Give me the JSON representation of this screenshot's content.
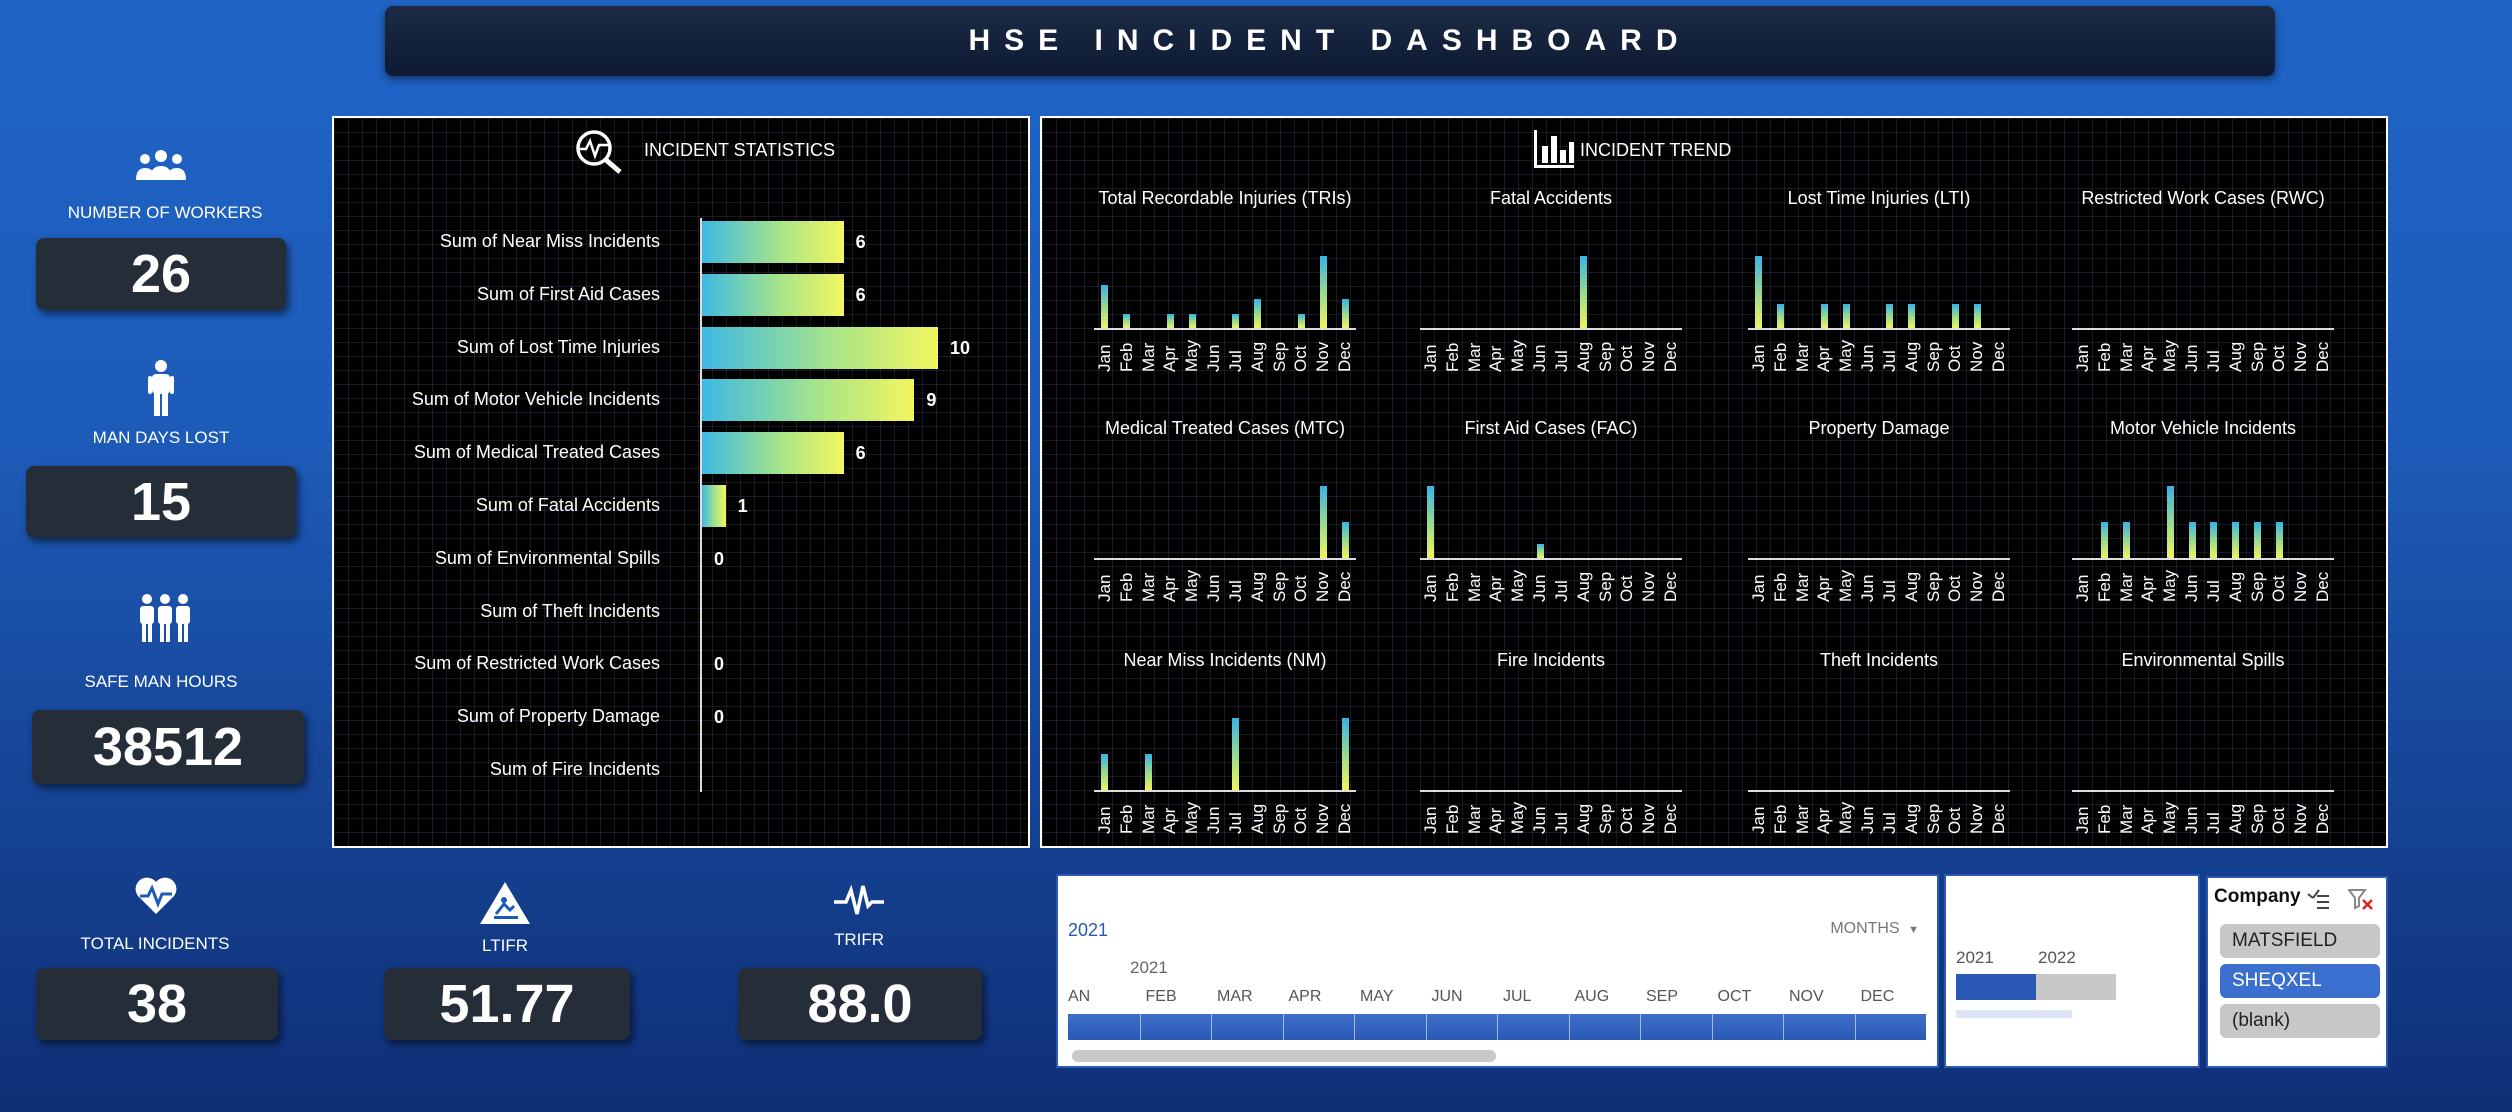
{
  "title": "HSE INCIDENT DASHBOARD",
  "kpis": {
    "workers": {
      "label": "NUMBER OF WORKERS",
      "value": "26",
      "icon": "group-icon"
    },
    "man_days_lost": {
      "label": "MAN DAYS LOST",
      "value": "15",
      "icon": "person-icon"
    },
    "safe_man_hours": {
      "label": "SAFE MAN HOURS",
      "value": "38512",
      "icon": "people-icon"
    },
    "total_incidents": {
      "label": "TOTAL INCIDENTS",
      "value": "38",
      "icon": "heartbeat-icon"
    },
    "ltifr": {
      "label": "LTIFR",
      "value": "51.77",
      "icon": "warning-fall-icon"
    },
    "trifr": {
      "label": "TRIFR",
      "value": "88.0",
      "icon": "pulse-icon"
    }
  },
  "incident_statistics": {
    "title": "INCIDENT STATISTICS",
    "icon": "magnifier-pulse-icon"
  },
  "incident_trend": {
    "title": "INCIDENT TREND",
    "icon": "bar-chart-icon"
  },
  "chart_data": [
    {
      "type": "bar",
      "orientation": "horizontal",
      "title": "INCIDENT STATISTICS",
      "categories": [
        "Sum of Near Miss Incidents",
        "Sum of First Aid Cases",
        "Sum of Lost Time Injuries",
        "Sum of Motor Vehicle Incidents",
        "Sum of Medical Treated Cases",
        "Sum of Fatal Accidents",
        "Sum of Environmental Spills",
        "Sum of Theft Incidents",
        "Sum of Restricted Work Cases",
        "Sum of Property Damage",
        "Sum of Fire Incidents"
      ],
      "values": [
        6,
        6,
        10,
        9,
        6,
        1,
        0,
        null,
        0,
        0,
        null
      ],
      "data_labels": [
        "6",
        "6",
        "10",
        "9",
        "6",
        "1",
        "0",
        "",
        "0",
        "0",
        ""
      ],
      "xlim": [
        0,
        10
      ]
    },
    {
      "type": "bar",
      "title": "Total Recordable Injuries (TRIs)",
      "categories": [
        "Jan",
        "Feb",
        "Mar",
        "Apr",
        "May",
        "Jun",
        "Jul",
        "Aug",
        "Sep",
        "Oct",
        "Nov",
        "Dec"
      ],
      "values": [
        3,
        1,
        0,
        1,
        1,
        0,
        1,
        2,
        0,
        1,
        5,
        2
      ]
    },
    {
      "type": "bar",
      "title": "Fatal Accidents",
      "categories": [
        "Jan",
        "Feb",
        "Mar",
        "Apr",
        "May",
        "Jun",
        "Jul",
        "Aug",
        "Sep",
        "Oct",
        "Nov",
        "Dec"
      ],
      "values": [
        0,
        0,
        0,
        0,
        0,
        0,
        0,
        1,
        0,
        0,
        0,
        0
      ]
    },
    {
      "type": "bar",
      "title": "Lost Time Injuries  (LTI)",
      "categories": [
        "Jan",
        "Feb",
        "Mar",
        "Apr",
        "May",
        "Jun",
        "Jul",
        "Aug",
        "Sep",
        "Oct",
        "Nov",
        "Dec"
      ],
      "values": [
        3,
        1,
        0,
        1,
        1,
        0,
        1,
        1,
        0,
        1,
        1,
        0
      ]
    },
    {
      "type": "bar",
      "title": "Restricted Work Cases (RWC)",
      "categories": [
        "Jan",
        "Feb",
        "Mar",
        "Apr",
        "May",
        "Jun",
        "Jul",
        "Aug",
        "Sep",
        "Oct",
        "Nov",
        "Dec"
      ],
      "values": [
        0,
        0,
        0,
        0,
        0,
        0,
        0,
        0,
        0,
        0,
        0,
        0
      ]
    },
    {
      "type": "bar",
      "title": "Medical Treated Cases (MTC)",
      "categories": [
        "Jan",
        "Feb",
        "Mar",
        "Apr",
        "May",
        "Jun",
        "Jul",
        "Aug",
        "Sep",
        "Oct",
        "Nov",
        "Dec"
      ],
      "values": [
        0,
        0,
        0,
        0,
        0,
        0,
        0,
        0,
        0,
        0,
        4,
        2
      ]
    },
    {
      "type": "bar",
      "title": "First Aid Cases (FAC)",
      "categories": [
        "Jan",
        "Feb",
        "Mar",
        "Apr",
        "May",
        "Jun",
        "Jul",
        "Aug",
        "Sep",
        "Oct",
        "Nov",
        "Dec"
      ],
      "values": [
        5,
        0,
        0,
        0,
        0,
        1,
        0,
        0,
        0,
        0,
        0,
        0
      ]
    },
    {
      "type": "bar",
      "title": "Property Damage",
      "categories": [
        "Jan",
        "Feb",
        "Mar",
        "Apr",
        "May",
        "Jun",
        "Jul",
        "Aug",
        "Sep",
        "Oct",
        "Nov",
        "Dec"
      ],
      "values": [
        0,
        0,
        0,
        0,
        0,
        0,
        0,
        0,
        0,
        0,
        0,
        0
      ]
    },
    {
      "type": "bar",
      "title": "Motor Vehicle Incidents",
      "categories": [
        "Jan",
        "Feb",
        "Mar",
        "Apr",
        "May",
        "Jun",
        "Jul",
        "Aug",
        "Sep",
        "Oct",
        "Nov",
        "Dec"
      ],
      "values": [
        0,
        1,
        1,
        0,
        2,
        1,
        1,
        1,
        1,
        1,
        0,
        0
      ]
    },
    {
      "type": "bar",
      "title": "Near Miss Incidents (NM)",
      "categories": [
        "Jan",
        "Feb",
        "Mar",
        "Apr",
        "May",
        "Jun",
        "Jul",
        "Aug",
        "Sep",
        "Oct",
        "Nov",
        "Dec"
      ],
      "values": [
        1,
        0,
        1,
        0,
        0,
        0,
        2,
        0,
        0,
        0,
        0,
        2
      ]
    },
    {
      "type": "bar",
      "title": "Fire Incidents",
      "categories": [
        "Jan",
        "Feb",
        "Mar",
        "Apr",
        "May",
        "Jun",
        "Jul",
        "Aug",
        "Sep",
        "Oct",
        "Nov",
        "Dec"
      ],
      "values": [
        0,
        0,
        0,
        0,
        0,
        0,
        0,
        0,
        0,
        0,
        0,
        0
      ]
    },
    {
      "type": "bar",
      "title": "Theft Incidents",
      "categories": [
        "Jan",
        "Feb",
        "Mar",
        "Apr",
        "May",
        "Jun",
        "Jul",
        "Aug",
        "Sep",
        "Oct",
        "Nov",
        "Dec"
      ],
      "values": [
        0,
        0,
        0,
        0,
        0,
        0,
        0,
        0,
        0,
        0,
        0,
        0
      ]
    },
    {
      "type": "bar",
      "title": "Environmental Spills",
      "categories": [
        "Jan",
        "Feb",
        "Mar",
        "Apr",
        "May",
        "Jun",
        "Jul",
        "Aug",
        "Sep",
        "Oct",
        "Nov",
        "Dec"
      ],
      "values": [
        0,
        0,
        0,
        0,
        0,
        0,
        0,
        0,
        0,
        0,
        0,
        0
      ]
    }
  ],
  "timeline": {
    "year_label": "2021",
    "period_label": "MONTHS",
    "sub_year": "2021",
    "months": [
      "AN",
      "FEB",
      "MAR",
      "APR",
      "MAY",
      "JUN",
      "JUL",
      "AUG",
      "SEP",
      "OCT",
      "NOV",
      "DEC"
    ]
  },
  "year_slicer": {
    "years": [
      "2021",
      "2022"
    ],
    "selected_fraction": 0.5
  },
  "company_slicer": {
    "title": "Company",
    "items": [
      {
        "label": "MATSFIELD",
        "selected": false
      },
      {
        "label": "SHEQXEL",
        "selected": true
      },
      {
        "label": "(blank)",
        "selected": false
      }
    ]
  },
  "colors": {
    "bar_start": "#3db9e4",
    "bar_end": "#f4f55f",
    "accent": "#3b6fcf",
    "kpi_box": "#252d39"
  }
}
